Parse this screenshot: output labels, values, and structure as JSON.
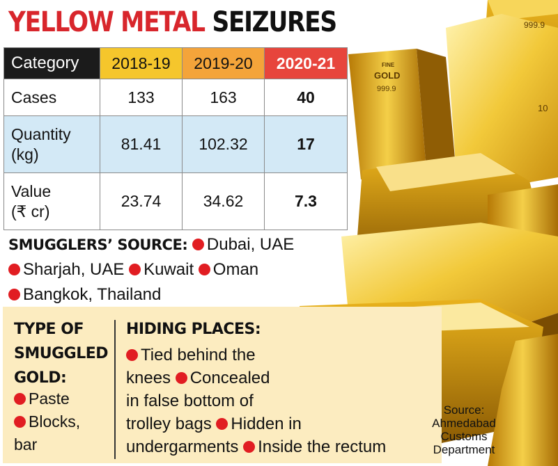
{
  "title": {
    "part1": "YELLOW METAL",
    "part2": "SEIZURES"
  },
  "table": {
    "headers": [
      "Category",
      "2018-19",
      "2019-20",
      "2020-21"
    ],
    "rows": [
      {
        "label": [
          "Cases"
        ],
        "values": [
          "133",
          "163",
          "40"
        ]
      },
      {
        "label": [
          "Quantity",
          "(kg)"
        ],
        "values": [
          "81.41",
          "102.32",
          "17"
        ]
      },
      {
        "label": [
          "Value",
          "(₹ cr)"
        ],
        "values": [
          "23.74",
          "34.62",
          "7.3"
        ]
      }
    ]
  },
  "sources": {
    "heading": "SMUGGLERS’ SOURCE:",
    "items": [
      "Dubai, UAE",
      "Sharjah, UAE",
      "Kuwait",
      "Oman",
      "Bangkok, Thailand"
    ]
  },
  "type_of_gold": {
    "heading_lines": [
      "TYPE OF",
      "SMUGGLED",
      "GOLD:"
    ],
    "items": [
      "Paste",
      "Blocks,",
      "bar"
    ]
  },
  "hiding_places": {
    "heading": "HIDING PLACES:",
    "lines": [
      "Tied behind the",
      "knees",
      "Concealed",
      "in false bottom of",
      "trolley bags",
      "Hidden in",
      "undergarments",
      "Inside the rectum"
    ]
  },
  "bar_stamps": [
    "FINE",
    "GOLD",
    "999.9",
    "999.9",
    "10"
  ],
  "source_note": [
    "Source:",
    "Ahmedabad",
    "Customs",
    "Department"
  ],
  "colors": {
    "title_red": "#d8262c",
    "bullet_red": "#e11d22",
    "panel_bg": "#fcecc0",
    "row_blue": "#d3e9f6"
  }
}
